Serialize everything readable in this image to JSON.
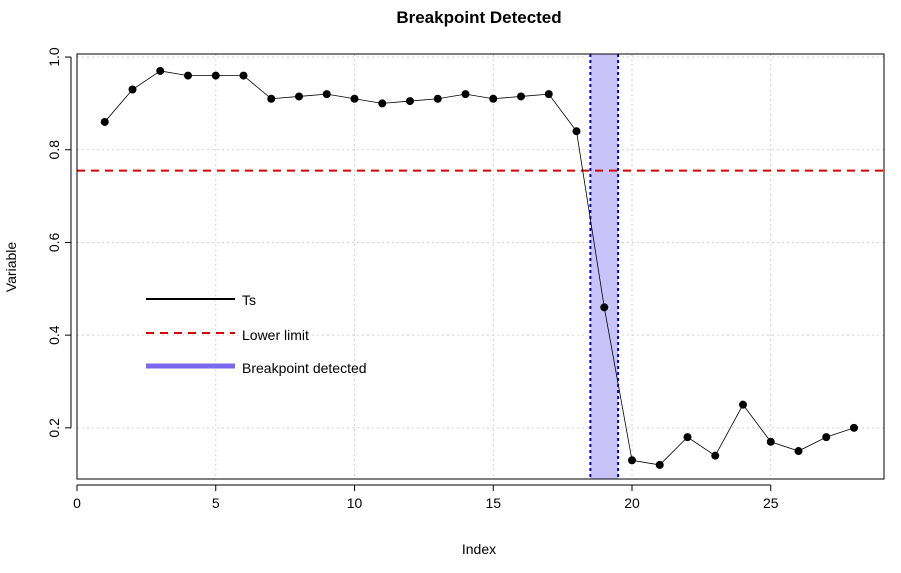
{
  "chart_data": {
    "type": "line",
    "title": "Breakpoint Detected",
    "xlabel": "Index",
    "ylabel": "Variable",
    "xlim": [
      0,
      29
    ],
    "ylim": [
      0.1,
      1.0
    ],
    "x_ticks": [
      0,
      5,
      10,
      15,
      20,
      25
    ],
    "y_ticks": [
      0.2,
      0.4,
      0.6,
      0.8,
      1.0
    ],
    "x_tick_labels": [
      "0",
      "5",
      "10",
      "15",
      "20",
      "25"
    ],
    "y_tick_labels": [
      "0.2",
      "0.4",
      "0.6",
      "0.8",
      "1.0"
    ],
    "grid": true,
    "series": [
      {
        "name": "Ts",
        "color": "#000000",
        "x": [
          1,
          2,
          3,
          4,
          5,
          6,
          7,
          8,
          9,
          10,
          11,
          12,
          13,
          14,
          15,
          16,
          17,
          18,
          19,
          20,
          21,
          22,
          23,
          24,
          25,
          26,
          27,
          28
        ],
        "values": [
          0.86,
          0.93,
          0.97,
          0.96,
          0.96,
          0.96,
          0.91,
          0.915,
          0.92,
          0.91,
          0.9,
          0.905,
          0.91,
          0.92,
          0.91,
          0.915,
          0.92,
          0.84,
          0.46,
          0.13,
          0.12,
          0.18,
          0.14,
          0.25,
          0.17,
          0.15,
          0.18,
          0.2
        ]
      }
    ],
    "lower_limit": {
      "name": "Lower limit",
      "value": 0.755,
      "color": "#dd0000"
    },
    "breakpoint": {
      "name": "Breakpoint detected",
      "x_range": [
        18.5,
        19.5
      ],
      "fill": "#c8c4fa",
      "border": "#0000cc",
      "legend_color": "#7b68ee"
    },
    "legend": {
      "placement": "middle-left",
      "entries": [
        "Ts",
        "Lower limit",
        "Breakpoint detected"
      ]
    }
  }
}
